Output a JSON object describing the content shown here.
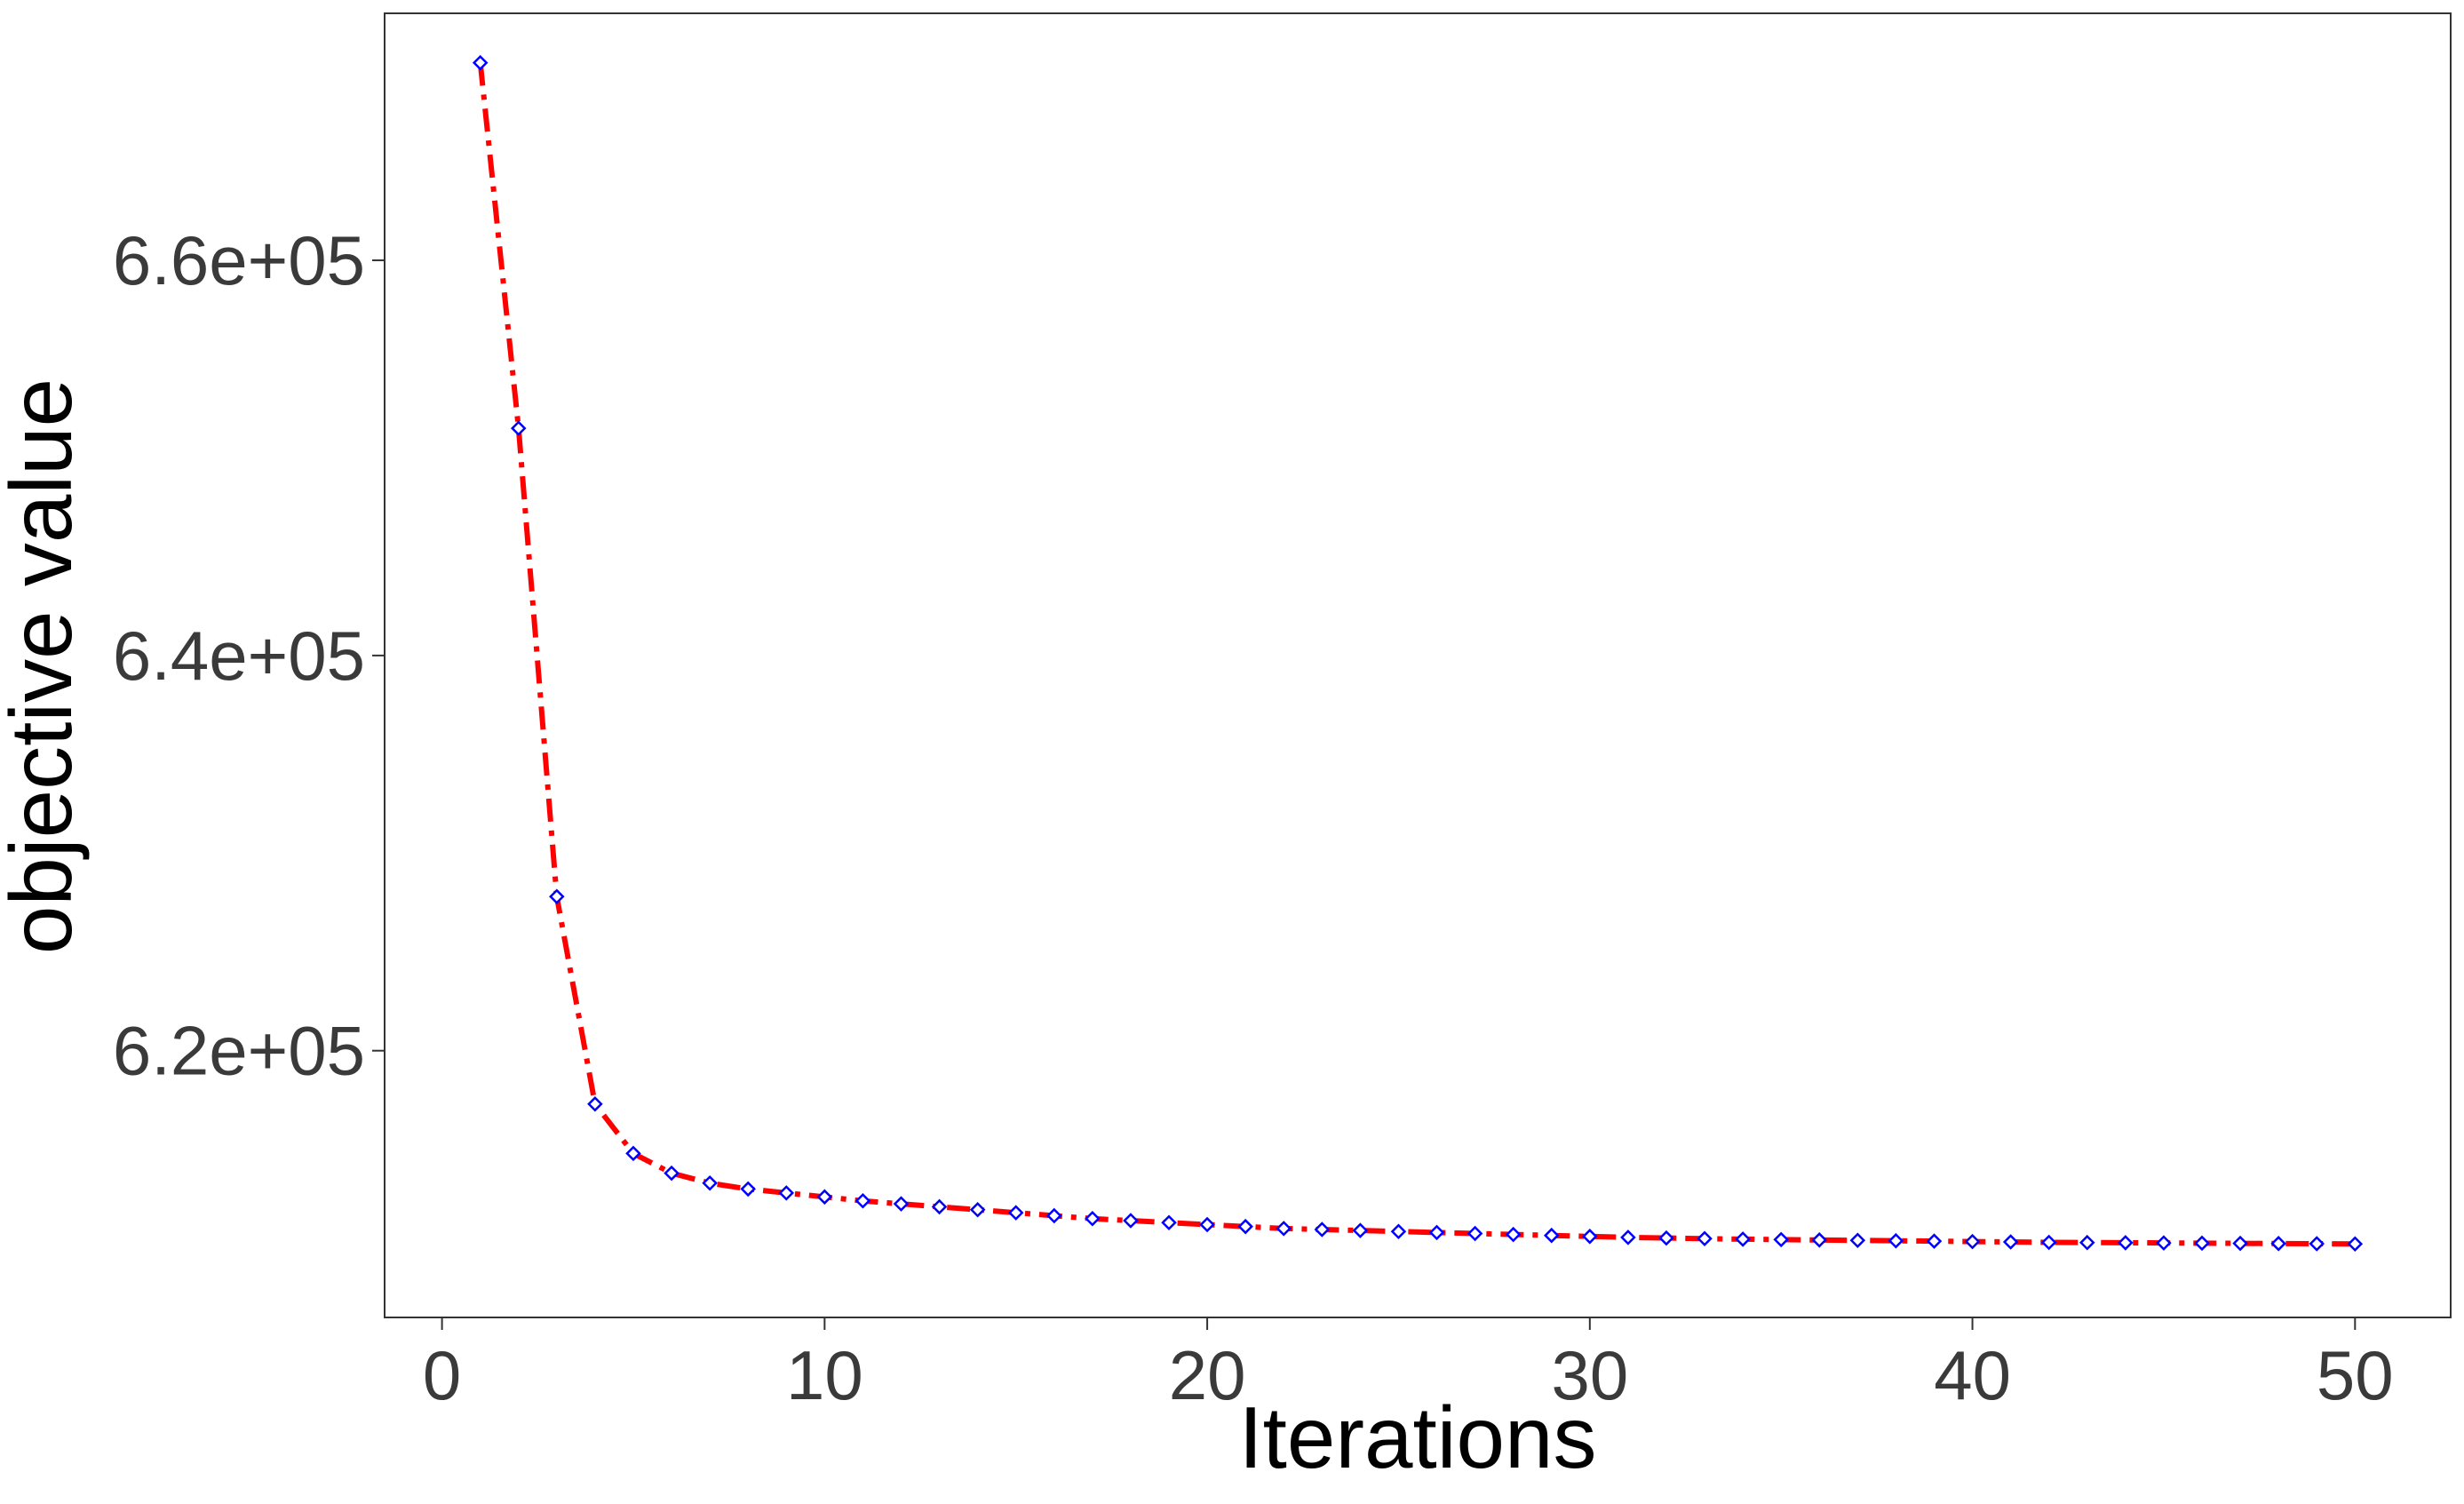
{
  "chart_data": {
    "type": "line",
    "title": "",
    "xlabel": "Iterations",
    "ylabel": "objective value",
    "xlim": [
      -1.5,
      52.5
    ],
    "ylim": [
      606500,
      672500
    ],
    "x_ticks": [
      0,
      10,
      20,
      30,
      40,
      50
    ],
    "x_tick_labels": [
      "0",
      "10",
      "20",
      "30",
      "40",
      "50"
    ],
    "y_ticks": [
      620000,
      640000,
      660000
    ],
    "y_tick_labels": [
      "6.2e+05",
      "6.4e+05",
      "6.6e+05"
    ],
    "grid": false,
    "legend": "none",
    "line_style": "dashed-dotted",
    "line_color": "#ff0000",
    "marker": "diamond",
    "marker_color": "#0000ff",
    "series": [
      {
        "x": [
          1,
          2,
          3,
          4,
          5,
          6,
          7,
          8,
          9,
          10,
          11,
          12,
          13,
          14,
          15,
          16,
          17,
          18,
          19,
          20,
          21,
          22,
          23,
          24,
          25,
          26,
          27,
          28,
          29,
          30,
          31,
          32,
          33,
          34,
          35,
          36,
          37,
          38,
          39,
          40,
          41,
          42,
          43,
          44,
          45,
          46,
          47,
          48,
          49,
          50
        ],
        "values": [
          670000,
          651500,
          627800,
          617300,
          614800,
          613800,
          613300,
          613000,
          612800,
          612600,
          612400,
          612250,
          612100,
          611950,
          611800,
          611650,
          611500,
          611400,
          611300,
          611200,
          611100,
          611000,
          610950,
          610900,
          610850,
          610800,
          610750,
          610700,
          610650,
          610600,
          610550,
          610520,
          610490,
          610460,
          610440,
          610420,
          610400,
          610380,
          610360,
          610340,
          610320,
          610300,
          610290,
          610280,
          610270,
          610260,
          610250,
          610240,
          610230,
          610220
        ]
      }
    ]
  }
}
